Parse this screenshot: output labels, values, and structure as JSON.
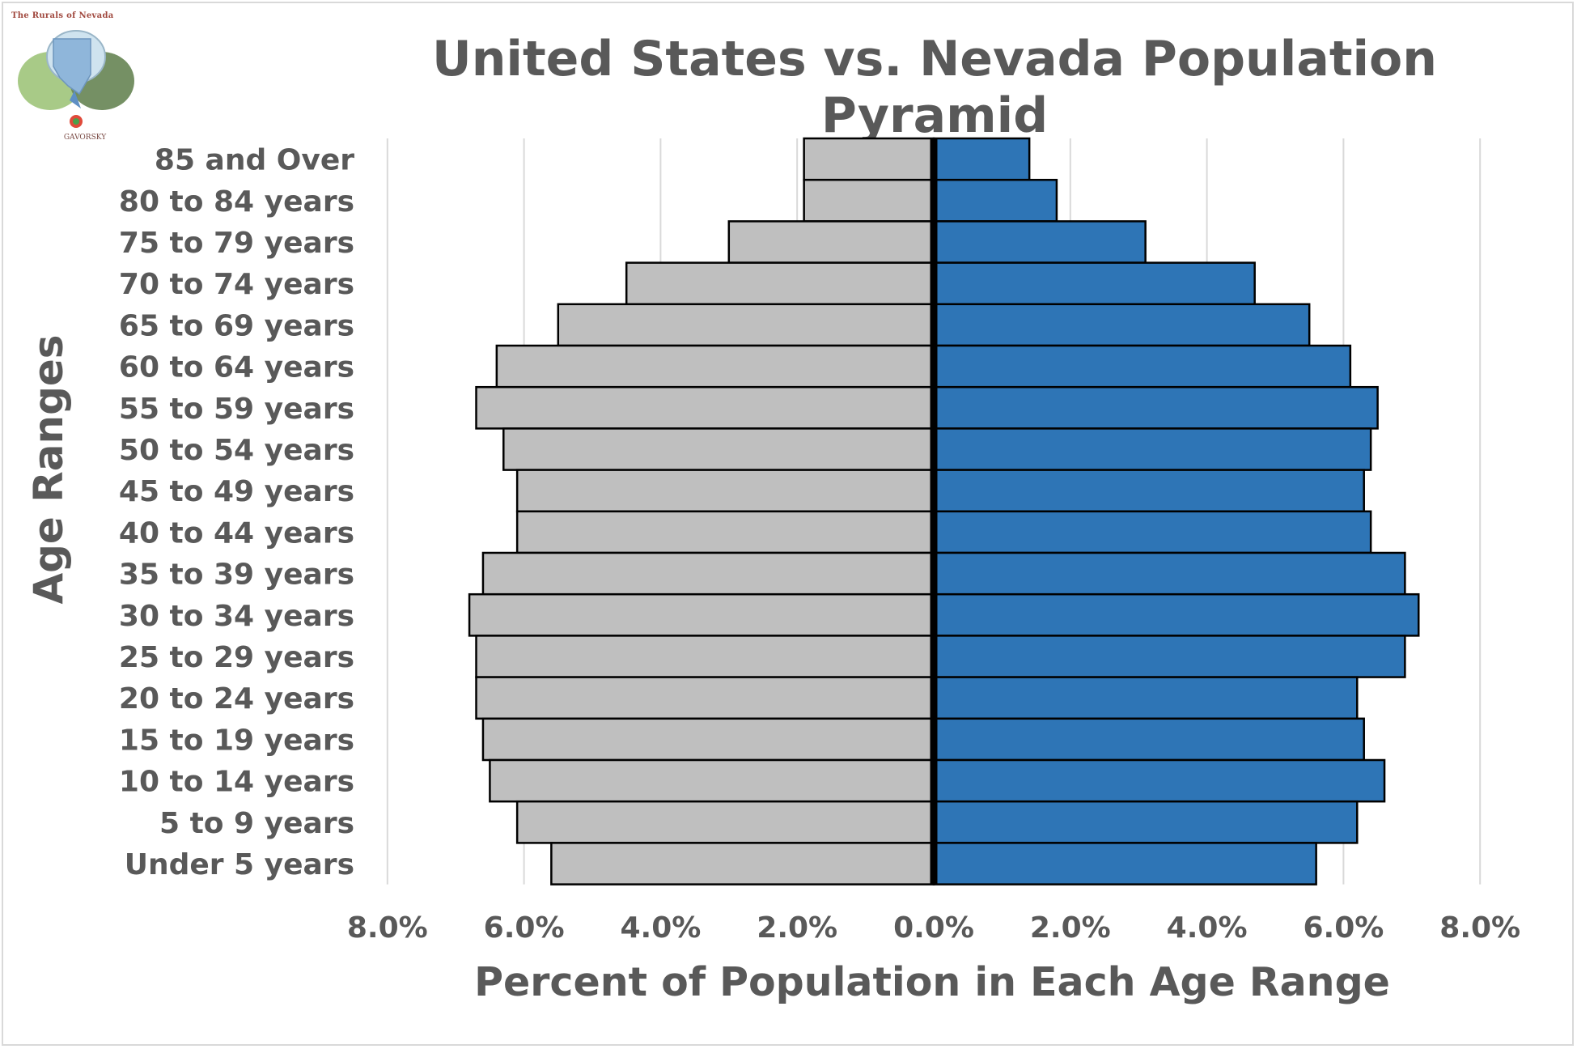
{
  "logo": {
    "caption": "The Rurals of Nevada",
    "brand": "GAVORSKY"
  },
  "chart_data": {
    "type": "bar",
    "orientation": "horizontal-pyramid",
    "title": "United States vs. Nevada Population Pyramid",
    "xlabel": "Percent of Population in Each Age Range",
    "ylabel": "Age Ranges",
    "categories": [
      "85 and Over",
      "80 to 84 years",
      "75 to 79 years",
      "70 to 74 years",
      "65 to 69 years",
      "60 to 64 years",
      "55 to 59 years",
      "50 to 54 years",
      "45 to 49 years",
      "40 to 44 years",
      "35 to 39 years",
      "30 to 34 years",
      "25 to 29 years",
      "20 to 24 years",
      "15 to 19 years",
      "10 to 14 years",
      "5 to 9 years",
      "Under 5 years"
    ],
    "series": [
      {
        "side": "left",
        "color": "#bfbfbf",
        "values": [
          1.9,
          1.9,
          3.0,
          4.5,
          5.5,
          6.4,
          6.7,
          6.3,
          6.1,
          6.1,
          6.6,
          6.8,
          6.7,
          6.7,
          6.6,
          6.5,
          6.1,
          5.6
        ]
      },
      {
        "side": "right",
        "color": "#2e75b6",
        "values": [
          1.4,
          1.8,
          3.1,
          4.7,
          5.5,
          6.1,
          6.5,
          6.4,
          6.3,
          6.4,
          6.9,
          7.1,
          6.9,
          6.2,
          6.3,
          6.6,
          6.2,
          5.6
        ]
      }
    ],
    "xlim": [
      -8.0,
      8.0
    ],
    "x_ticks": [
      "8.0%",
      "6.0%",
      "4.0%",
      "2.0%",
      "0.0%",
      "2.0%",
      "4.0%",
      "6.0%",
      "8.0%"
    ],
    "grid": "vertical",
    "legend": "none"
  }
}
